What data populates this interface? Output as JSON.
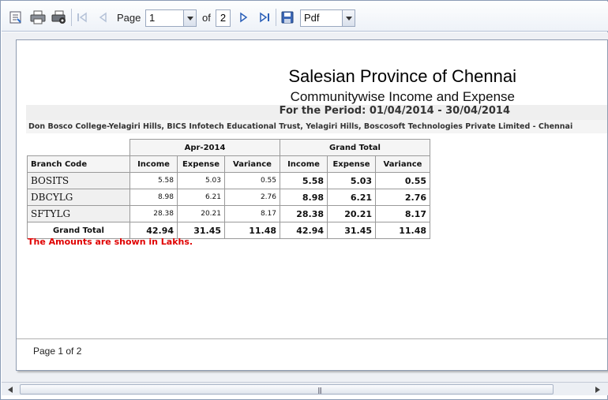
{
  "toolbar": {
    "page_label": "Page",
    "current_page": "1",
    "of_label": "of",
    "total_pages": "2",
    "export_format": "Pdf"
  },
  "report": {
    "title": "Salesian Province of Chennai",
    "subtitle": "Communitywise Income and Expense",
    "period": "For the Period: 01/04/2014 - 30/04/2014",
    "entities": "Don Bosco College-Yelagiri Hills, BICS Infotech Educational Trust, Yelagiri Hills, Boscosoft Technologies Private Limited - Chennai",
    "group_headers": [
      "Apr-2014",
      "Grand Total"
    ],
    "branch_header": "Branch Code",
    "columns": [
      "Income",
      "Expense",
      "Variance",
      "Income",
      "Expense",
      "Variance"
    ],
    "rows": [
      {
        "code": "BOSITS",
        "values": [
          "5.58",
          "5.03",
          "0.55",
          "5.58",
          "5.03",
          "0.55"
        ]
      },
      {
        "code": "DBCYLG",
        "values": [
          "8.98",
          "6.21",
          "2.76",
          "8.98",
          "6.21",
          "2.76"
        ]
      },
      {
        "code": "SFTYLG",
        "values": [
          "28.38",
          "20.21",
          "8.17",
          "28.38",
          "20.21",
          "8.17"
        ]
      }
    ],
    "grand_total": {
      "label": "Grand Total",
      "values": [
        "42.94",
        "31.45",
        "11.48",
        "42.94",
        "31.45",
        "11.48"
      ]
    },
    "note": "The Amounts are shown in Lakhs.",
    "page_footer": "Page 1 of 2"
  },
  "colors": {
    "note": "#e00000",
    "header_band": "#efefef",
    "toolbar_bg": "#eef2f8"
  },
  "icons": [
    "document-map-icon",
    "print-icon",
    "page-setup-icon",
    "first-page-icon",
    "previous-page-icon",
    "next-page-icon",
    "last-page-icon",
    "save-icon",
    "dropdown-arrow-icon",
    "scroll-left-icon",
    "scroll-right-icon"
  ]
}
